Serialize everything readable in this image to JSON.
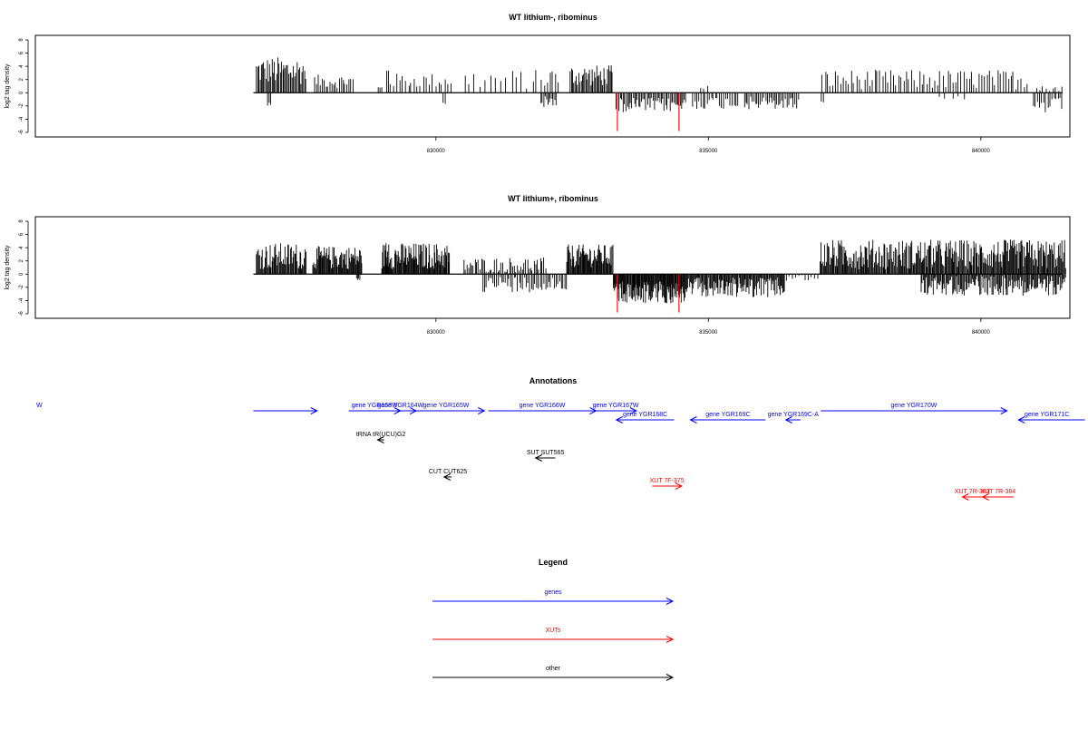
{
  "colors": {
    "genes": "#0000ff",
    "xuts": "#ff0000",
    "other": "#000000",
    "highlight": "#ff0000",
    "density": "#000000"
  },
  "chart_data": [
    {
      "type": "bar",
      "title": "WT lithium-, ribominus",
      "xlabel": "",
      "ylabel": "log2 tag density",
      "xlim": [
        822700,
        841600
      ],
      "ylim": [
        -6,
        8
      ],
      "yticks": [
        "-6",
        "-4",
        "-2",
        "0",
        "2",
        "4",
        "6",
        "8"
      ],
      "xticks": [
        {
          "value": 830000,
          "label": "830000"
        },
        {
          "value": 835000,
          "label": "835000"
        },
        {
          "value": 840000,
          "label": "840000"
        }
      ],
      "grid": false,
      "series": [
        {
          "color": "#000000",
          "segments": [
            {
              "start": 826700,
              "end": 827620,
              "sign": 1,
              "base": 2.5,
              "spread": 4.2,
              "step": 22
            },
            {
              "start": 826900,
              "end": 826960,
              "sign": -1,
              "base": 3.0,
              "spread": 0.5,
              "step": 30
            },
            {
              "start": 827760,
              "end": 828460,
              "sign": 1,
              "base": 1.5,
              "spread": 2.0,
              "step": 35
            },
            {
              "start": 828940,
              "end": 829000,
              "sign": 1,
              "base": 1.0,
              "spread": 0.5,
              "step": 30
            },
            {
              "start": 829080,
              "end": 829120,
              "sign": 1,
              "base": 6.0,
              "spread": 1.0,
              "step": 40
            },
            {
              "start": 829150,
              "end": 830250,
              "sign": 1,
              "base": 1.5,
              "spread": 2.2,
              "step": 55
            },
            {
              "start": 830120,
              "end": 830160,
              "sign": -1,
              "base": 2.8,
              "spread": 0.4,
              "step": 40
            },
            {
              "start": 830500,
              "end": 831900,
              "sign": 1,
              "base": 1.0,
              "spread": 3.0,
              "step": 95
            },
            {
              "start": 831920,
              "end": 832260,
              "sign": 1,
              "base": 1.0,
              "spread": 3.5,
              "step": 50
            },
            {
              "start": 831920,
              "end": 832200,
              "sign": -1,
              "base": 1.0,
              "spread": 1.8,
              "step": 25
            },
            {
              "start": 832460,
              "end": 833250,
              "sign": 1,
              "base": 2.0,
              "spread": 3.2,
              "step": 22
            },
            {
              "start": 833300,
              "end": 834580,
              "sign": -1,
              "base": 1.5,
              "spread": 2.2,
              "step": 26
            },
            {
              "start": 834700,
              "end": 835550,
              "sign": -1,
              "base": 1.0,
              "spread": 2.0,
              "step": 38
            },
            {
              "start": 834850,
              "end": 835000,
              "sign": 1,
              "base": 0.5,
              "spread": 0.8,
              "step": 60
            },
            {
              "start": 835650,
              "end": 836650,
              "sign": -1,
              "base": 1.2,
              "spread": 2.0,
              "step": 30
            },
            {
              "start": 837050,
              "end": 837120,
              "sign": -1,
              "base": 2.5,
              "spread": 0.3,
              "step": 40
            },
            {
              "start": 837080,
              "end": 840850,
              "sign": 1,
              "base": 1.0,
              "spread": 3.0,
              "step": 48
            },
            {
              "start": 839200,
              "end": 839700,
              "sign": -1,
              "base": 1.0,
              "spread": 1.0,
              "step": 120
            },
            {
              "start": 840950,
              "end": 841500,
              "sign": -1,
              "base": 1.5,
              "spread": 2.5,
              "step": 38
            },
            {
              "start": 841000,
              "end": 841500,
              "sign": 1,
              "base": 0.5,
              "spread": 0.8,
              "step": 60
            }
          ]
        },
        {
          "color": "#ff0000",
          "bars": [
            {
              "x": 833330,
              "y": -5.8
            },
            {
              "x": 834460,
              "y": -5.8
            }
          ]
        }
      ]
    },
    {
      "type": "bar",
      "title": "WT lithium+, ribominus",
      "xlabel": "",
      "ylabel": "log2 tag density",
      "xlim": [
        822700,
        841600
      ],
      "ylim": [
        -6,
        8
      ],
      "yticks": [
        "-6",
        "-4",
        "-2",
        "0",
        "2",
        "4",
        "6",
        "8"
      ],
      "xticks": [
        {
          "value": 830000,
          "label": "830000"
        },
        {
          "value": 835000,
          "label": "835000"
        },
        {
          "value": 840000,
          "label": "840000"
        }
      ],
      "grid": false,
      "series": [
        {
          "color": "#000000",
          "segments": [
            {
              "start": 826700,
              "end": 827620,
              "sign": 1,
              "base": 1.5,
              "spread": 4.0,
              "step": 16
            },
            {
              "start": 827740,
              "end": 828640,
              "sign": 1,
              "base": 1.5,
              "spread": 3.5,
              "step": 14
            },
            {
              "start": 828540,
              "end": 828600,
              "sign": -1,
              "base": 1.2,
              "spread": 0.3,
              "step": 20
            },
            {
              "start": 829000,
              "end": 830250,
              "sign": 1,
              "base": 1.5,
              "spread": 4.0,
              "step": 14
            },
            {
              "start": 829080,
              "end": 829120,
              "sign": 1,
              "base": 7.5,
              "spread": 1.0,
              "step": 40
            },
            {
              "start": 830500,
              "end": 832000,
              "sign": 1,
              "base": 0.5,
              "spread": 2.3,
              "step": 30
            },
            {
              "start": 830850,
              "end": 832400,
              "sign": -1,
              "base": 0.5,
              "spread": 2.5,
              "step": 32
            },
            {
              "start": 832400,
              "end": 833250,
              "sign": 1,
              "base": 2.0,
              "spread": 3.5,
              "step": 14
            },
            {
              "start": 833250,
              "end": 834600,
              "sign": -1,
              "base": 2.0,
              "spread": 3.5,
              "step": 12
            },
            {
              "start": 834600,
              "end": 836400,
              "sign": -1,
              "base": 1.0,
              "spread": 3.0,
              "step": 16
            },
            {
              "start": 836400,
              "end": 837000,
              "sign": -1,
              "base": 0.3,
              "spread": 1.0,
              "step": 60
            },
            {
              "start": 837050,
              "end": 841550,
              "sign": 1,
              "base": 1.5,
              "spread": 4.5,
              "step": 16
            },
            {
              "start": 838900,
              "end": 841550,
              "sign": -1,
              "base": 0.5,
              "spread": 3.0,
              "step": 18
            }
          ]
        },
        {
          "color": "#ff0000",
          "bars": [
            {
              "x": 833330,
              "y": -5.8
            },
            {
              "x": 834460,
              "y": -5.8
            }
          ]
        }
      ]
    },
    {
      "type": "diagram",
      "title": "Annotations",
      "xlim": [
        822700,
        841600
      ],
      "features": [
        {
          "label": "W",
          "category": "genes",
          "start": 826650,
          "end": 827820,
          "strand": "+",
          "row": 0
        },
        {
          "label": "gene YGR163W",
          "category": "genes",
          "start": 828400,
          "end": 829350,
          "strand": "+",
          "row": 0
        },
        {
          "label": "gene YGR164W",
          "category": "genes",
          "start": 829060,
          "end": 829640,
          "strand": "+",
          "row": 0
        },
        {
          "label": "gene YGR165W",
          "category": "genes",
          "start": 829480,
          "end": 830890,
          "strand": "+",
          "row": 0
        },
        {
          "label": "gene YGR166W",
          "category": "genes",
          "start": 830960,
          "end": 832940,
          "strand": "+",
          "row": 0
        },
        {
          "label": "gene YGR167W",
          "category": "genes",
          "start": 832920,
          "end": 833680,
          "strand": "+",
          "row": 0
        },
        {
          "label": "gene YGR168C",
          "category": "genes",
          "start": 833310,
          "end": 834370,
          "strand": "-",
          "row": 1
        },
        {
          "label": "gene YGR169C",
          "category": "genes",
          "start": 834670,
          "end": 836050,
          "strand": "-",
          "row": 1
        },
        {
          "label": "gene YGR169C-A",
          "category": "genes",
          "start": 836420,
          "end": 836690,
          "strand": "-",
          "row": 1
        },
        {
          "label": "gene YGR170W",
          "category": "genes",
          "start": 837060,
          "end": 840480,
          "strand": "+",
          "row": 0
        },
        {
          "label": "gene YGR171C",
          "category": "genes",
          "start": 840690,
          "end": 841910,
          "strand": "-",
          "row": 1
        },
        {
          "label": "tRNA tR(UCU)G2",
          "category": "other",
          "start": 828930,
          "end": 829050,
          "strand": "-",
          "row": 2
        },
        {
          "label": "SUT SUT565",
          "category": "other",
          "start": 831830,
          "end": 832190,
          "strand": "-",
          "row": 3
        },
        {
          "label": "CUT CUT625",
          "category": "other",
          "start": 830150,
          "end": 830290,
          "strand": "-",
          "row": 4
        },
        {
          "label": "XUT 7F-375",
          "category": "xuts",
          "start": 833970,
          "end": 834510,
          "strand": "+",
          "row": 5
        },
        {
          "label": "XUT 7R-383",
          "category": "xuts",
          "start": 839660,
          "end": 840020,
          "strand": "-",
          "row": 6
        },
        {
          "label": "XUT 7R-384",
          "category": "xuts",
          "start": 840030,
          "end": 840600,
          "strand": "-",
          "row": 6
        }
      ]
    },
    {
      "type": "legend",
      "title": "Legend",
      "entries": [
        {
          "label": "genes",
          "color": "#0000ff"
        },
        {
          "label": "XUTs",
          "color": "#ff0000"
        },
        {
          "label": "other",
          "color": "#000000"
        }
      ]
    }
  ]
}
